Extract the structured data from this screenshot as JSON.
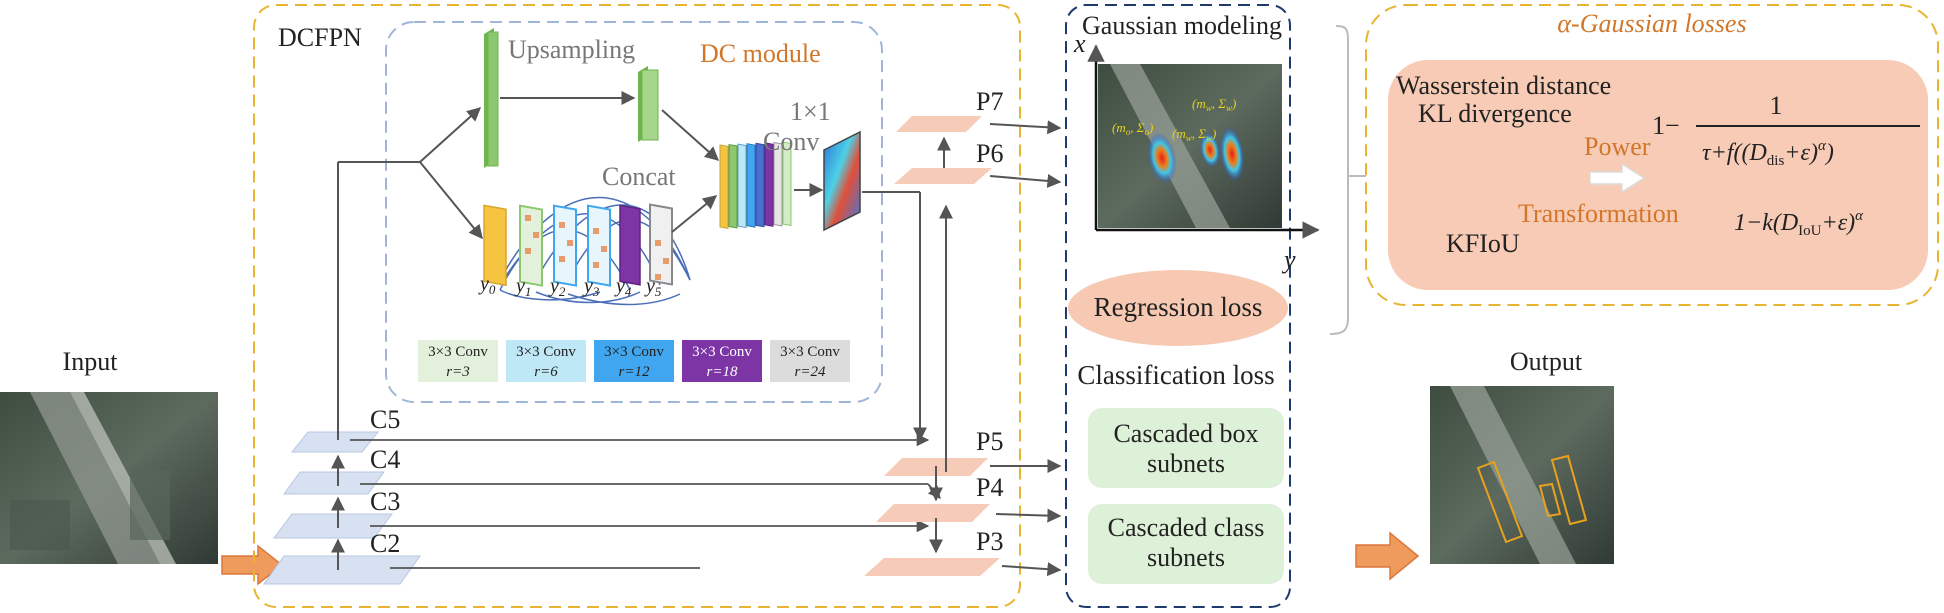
{
  "labels": {
    "input": "Input",
    "output": "Output",
    "dcfpn": "DCFPN",
    "upsampling": "Upsampling",
    "dc_module": "DC module",
    "conv1x1_a": "1×1",
    "conv1x1_b": "Conv",
    "concat": "Concat",
    "y_symbol": "y",
    "y_subs": [
      "0",
      "1",
      "2",
      "3",
      "4",
      "5"
    ],
    "backbone": [
      "C5",
      "C4",
      "C3",
      "C2"
    ],
    "pyramid": [
      "P7",
      "P6",
      "P5",
      "P4",
      "P3"
    ],
    "gaussian_modeling": "Gaussian modeling",
    "axis_x": "x",
    "axis_y": "y",
    "plot_ann_left": "(m",
    "plot_ann_left_sub": "o",
    "plot_ann_left_rest": ", Σ",
    "plot_ann_right": "(m",
    "plot_ann_right_sub": "w",
    "plot_ann_right_rest": ", Σ",
    "plot_ann_close": ")",
    "regression_loss": "Regression loss",
    "classification_loss": "Classification loss",
    "box_subnets_1": "Cascaded box",
    "box_subnets_2": "subnets",
    "class_subnets_1": "Cascaded class",
    "class_subnets_2": "subnets",
    "alpha_losses": "α-Gaussian losses",
    "wasserstein": "Wasserstein distance",
    "kl": "KL divergence",
    "kfiou": "KFIoU",
    "power": "Power",
    "transformation": "Transformation",
    "formula1_prefix": "1−",
    "formula1_num": "1",
    "formula1_den": "τ+f((D",
    "formula1_den_sub": "dis",
    "formula1_den_rest": "+ε)",
    "formula1_den_sup": "α",
    "formula1_den_close": ")",
    "formula2": "1−k(D",
    "formula2_sub": "IoU",
    "formula2_rest": "+ε)",
    "formula2_sup": "α"
  },
  "conv_legend": [
    {
      "kernel": "3×3 Conv",
      "rate": "r=3",
      "color": "#e3f1dc",
      "text": "#222"
    },
    {
      "kernel": "3×3 Conv",
      "rate": "r=6",
      "color": "#bfe8f6",
      "text": "#222"
    },
    {
      "kernel": "3×3 Conv",
      "rate": "r=12",
      "color": "#3fa6ef",
      "text": "#222"
    },
    {
      "kernel": "3×3 Conv",
      "rate": "r=18",
      "color": "#7d35a6",
      "text": "#ffffff"
    },
    {
      "kernel": "3×3 Conv",
      "rate": "r=24",
      "color": "#dcdcdc",
      "text": "#222"
    }
  ],
  "colors": {
    "dcfpn_border": "#e8b531",
    "gaussian_border": "#1f3b6e",
    "alpha_border": "#e8b531",
    "dc_border": "#9fb6d9",
    "alpha_text": "#d2762a",
    "pink_fill": "#f7c9b2",
    "green_fill": "#ddf0d8",
    "plane_blue": "#d7e1f2",
    "plane_pink": "#f6cbb7",
    "arrow_orange": "#ef9b5e",
    "upsample_green": "#8cc870"
  }
}
